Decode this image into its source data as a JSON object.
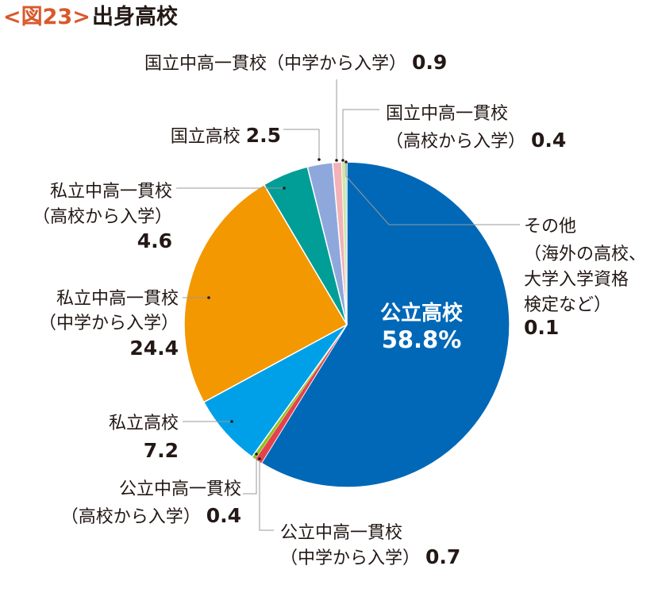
{
  "figure": {
    "tag": "<図23>",
    "title": "出身高校"
  },
  "chart_data": {
    "type": "pie",
    "title": "出身高校",
    "unit": "%",
    "start_angle_deg": 0,
    "direction": "clockwise",
    "slices": [
      {
        "key": "public",
        "label": "公立高校",
        "label_lines": [
          "公立高校"
        ],
        "value": 58.8,
        "value_text": "58.8%",
        "color": "#0068b7"
      },
      {
        "key": "public_ik_middle",
        "label": "公立中高一貫校（中学から入学）",
        "label_lines": [
          "公立中高一貫校",
          "（中学から入学）"
        ],
        "value": 0.7,
        "value_text": "0.7",
        "color": "#e4424d"
      },
      {
        "key": "public_ik_high",
        "label": "公立中高一貫校（高校から入学）",
        "label_lines": [
          "公立中高一貫校",
          "（高校から入学）"
        ],
        "value": 0.4,
        "value_text": "0.4",
        "color": "#8fc31f"
      },
      {
        "key": "private",
        "label": "私立高校",
        "label_lines": [
          "私立高校"
        ],
        "value": 7.2,
        "value_text": "7.2",
        "color": "#00a0e9"
      },
      {
        "key": "private_ik_middle",
        "label": "私立中高一貫校（中学から入学）",
        "label_lines": [
          "私立中高一貫校",
          "（中学から入学）"
        ],
        "value": 24.4,
        "value_text": "24.4",
        "color": "#f39800"
      },
      {
        "key": "private_ik_high",
        "label": "私立中高一貫校（高校から入学）",
        "label_lines": [
          "私立中高一貫校",
          "（高校から入学）"
        ],
        "value": 4.6,
        "value_text": "4.6",
        "color": "#009e96"
      },
      {
        "key": "national",
        "label": "国立高校",
        "label_lines": [
          "国立高校"
        ],
        "value": 2.5,
        "value_text": "2.5",
        "color": "#8fa8dc"
      },
      {
        "key": "national_ik_middle",
        "label": "国立中高一貫校（中学から入学）",
        "label_lines": [
          "国立中高一貫校（中学から入学）"
        ],
        "value": 0.9,
        "value_text": "0.9",
        "color": "#f2b2b7"
      },
      {
        "key": "national_ik_high",
        "label": "国立中高一貫校（高校から入学）",
        "label_lines": [
          "国立中高一貫校",
          "（高校から入学）"
        ],
        "value": 0.4,
        "value_text": "0.4",
        "color": "#cfe5a5"
      },
      {
        "key": "other",
        "label": "その他（海外の高校、大学入学資格検定など）",
        "label_lines": [
          "その他",
          "（海外の高校、",
          "大学入学資格",
          "検定など）"
        ],
        "value": 0.1,
        "value_text": "0.1",
        "color": "#8fd3e8"
      }
    ]
  }
}
